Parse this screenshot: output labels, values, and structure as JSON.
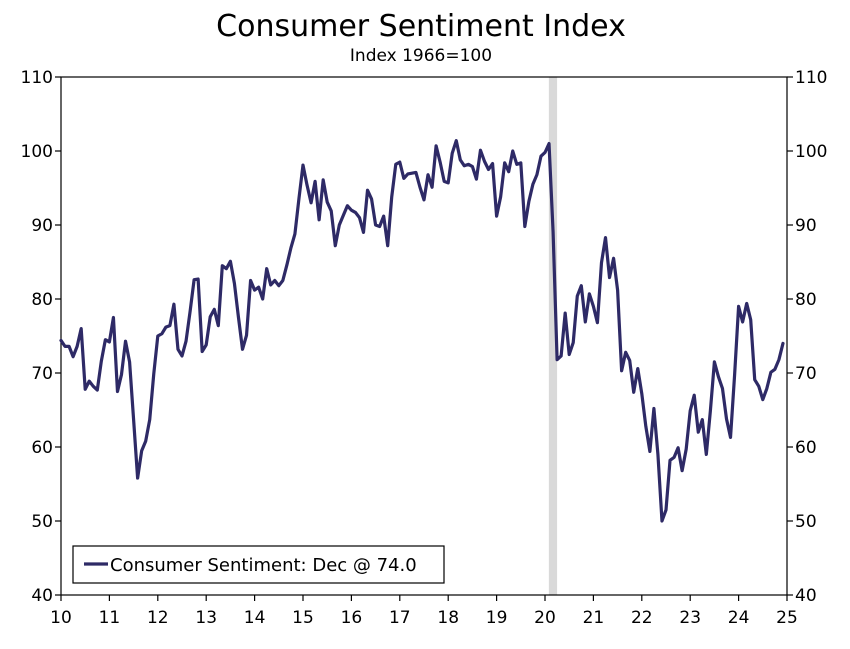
{
  "chart_data": {
    "type": "line",
    "title": "Consumer Sentiment Index",
    "subtitle": "Index 1966=100",
    "xlabel": "",
    "ylabel": "",
    "x_ticks": [
      "10",
      "11",
      "12",
      "13",
      "14",
      "15",
      "16",
      "17",
      "18",
      "19",
      "20",
      "21",
      "22",
      "23",
      "24",
      "25"
    ],
    "y_ticks": [
      "40",
      "50",
      "60",
      "70",
      "80",
      "90",
      "100",
      "110"
    ],
    "xlim": [
      2010.0,
      2025.0
    ],
    "ylim": [
      40,
      110
    ],
    "grid": false,
    "legend_position": "bottom-left",
    "recession_band": [
      2020.08,
      2020.25
    ],
    "recession_color": "#d9d9d9",
    "series": [
      {
        "name": "Consumer Sentiment: Dec @ 74.0",
        "color": "#2e2a66",
        "x": [
          2010.0,
          2010.083,
          2010.167,
          2010.25,
          2010.333,
          2010.417,
          2010.5,
          2010.583,
          2010.667,
          2010.75,
          2010.833,
          2010.917,
          2011.0,
          2011.083,
          2011.167,
          2011.25,
          2011.333,
          2011.417,
          2011.5,
          2011.583,
          2011.667,
          2011.75,
          2011.833,
          2011.917,
          2012.0,
          2012.083,
          2012.167,
          2012.25,
          2012.333,
          2012.417,
          2012.5,
          2012.583,
          2012.667,
          2012.75,
          2012.833,
          2012.917,
          2013.0,
          2013.083,
          2013.167,
          2013.25,
          2013.333,
          2013.417,
          2013.5,
          2013.583,
          2013.667,
          2013.75,
          2013.833,
          2013.917,
          2014.0,
          2014.083,
          2014.167,
          2014.25,
          2014.333,
          2014.417,
          2014.5,
          2014.583,
          2014.667,
          2014.75,
          2014.833,
          2014.917,
          2015.0,
          2015.083,
          2015.167,
          2015.25,
          2015.333,
          2015.417,
          2015.5,
          2015.583,
          2015.667,
          2015.75,
          2015.833,
          2015.917,
          2016.0,
          2016.083,
          2016.167,
          2016.25,
          2016.333,
          2016.417,
          2016.5,
          2016.583,
          2016.667,
          2016.75,
          2016.833,
          2016.917,
          2017.0,
          2017.083,
          2017.167,
          2017.25,
          2017.333,
          2017.417,
          2017.5,
          2017.583,
          2017.667,
          2017.75,
          2017.833,
          2017.917,
          2018.0,
          2018.083,
          2018.167,
          2018.25,
          2018.333,
          2018.417,
          2018.5,
          2018.583,
          2018.667,
          2018.75,
          2018.833,
          2018.917,
          2019.0,
          2019.083,
          2019.167,
          2019.25,
          2019.333,
          2019.417,
          2019.5,
          2019.583,
          2019.667,
          2019.75,
          2019.833,
          2019.917,
          2020.0,
          2020.083,
          2020.167,
          2020.25,
          2020.333,
          2020.417,
          2020.5,
          2020.583,
          2020.667,
          2020.75,
          2020.833,
          2020.917,
          2021.0,
          2021.083,
          2021.167,
          2021.25,
          2021.333,
          2021.417,
          2021.5,
          2021.583,
          2021.667,
          2021.75,
          2021.833,
          2021.917,
          2022.0,
          2022.083,
          2022.167,
          2022.25,
          2022.333,
          2022.417,
          2022.5,
          2022.583,
          2022.667,
          2022.75,
          2022.833,
          2022.917,
          2023.0,
          2023.083,
          2023.167,
          2023.25,
          2023.333,
          2023.417,
          2023.5,
          2023.583,
          2023.667,
          2023.75,
          2023.833,
          2023.917,
          2024.0,
          2024.083,
          2024.167,
          2024.25,
          2024.333,
          2024.417,
          2024.5,
          2024.583,
          2024.667,
          2024.75,
          2024.833,
          2024.917
        ],
        "values": [
          74.4,
          73.6,
          73.6,
          72.2,
          73.6,
          76.0,
          67.8,
          68.9,
          68.2,
          67.7,
          71.6,
          74.5,
          74.2,
          77.5,
          67.5,
          69.8,
          74.3,
          71.5,
          63.7,
          55.8,
          59.5,
          60.8,
          63.7,
          69.9,
          75.0,
          75.3,
          76.2,
          76.4,
          79.3,
          73.2,
          72.3,
          74.3,
          78.3,
          82.6,
          82.7,
          72.9,
          73.8,
          77.6,
          78.6,
          76.4,
          84.5,
          84.1,
          85.1,
          82.1,
          77.5,
          73.2,
          75.1,
          82.5,
          81.2,
          81.6,
          80.0,
          84.1,
          81.9,
          82.5,
          81.8,
          82.5,
          84.6,
          86.9,
          88.8,
          93.6,
          98.1,
          95.4,
          93.0,
          95.9,
          90.7,
          96.1,
          93.1,
          91.9,
          87.2,
          90.0,
          91.3,
          92.6,
          92.0,
          91.7,
          91.0,
          89.0,
          94.7,
          93.5,
          90.0,
          89.8,
          91.2,
          87.2,
          93.8,
          98.2,
          98.5,
          96.3,
          96.9,
          97.0,
          97.1,
          95.1,
          93.4,
          96.8,
          95.1,
          100.7,
          98.5,
          95.9,
          95.7,
          99.7,
          101.4,
          98.8,
          98.0,
          98.2,
          97.9,
          96.2,
          100.1,
          98.6,
          97.5,
          98.3,
          91.2,
          93.8,
          98.4,
          97.2,
          100.0,
          98.2,
          98.4,
          89.8,
          93.2,
          95.5,
          96.8,
          99.3,
          99.8,
          101.0,
          89.1,
          71.8,
          72.3,
          78.1,
          72.5,
          74.1,
          80.4,
          81.8,
          76.9,
          80.7,
          79.0,
          76.8,
          84.9,
          88.3,
          82.9,
          85.5,
          81.2,
          70.3,
          72.8,
          71.7,
          67.4,
          70.6,
          67.2,
          62.8,
          59.4,
          65.2,
          59.0,
          50.0,
          51.5,
          58.2,
          58.6,
          59.9,
          56.8,
          59.7,
          64.9,
          67.0,
          62.0,
          63.7,
          59.0,
          64.9,
          71.5,
          69.5,
          67.9,
          63.8,
          61.3,
          69.7,
          79.0,
          76.9,
          79.4,
          77.2,
          69.1,
          68.2,
          66.4,
          67.9,
          70.1,
          70.5,
          71.8,
          74.0
        ]
      }
    ]
  }
}
